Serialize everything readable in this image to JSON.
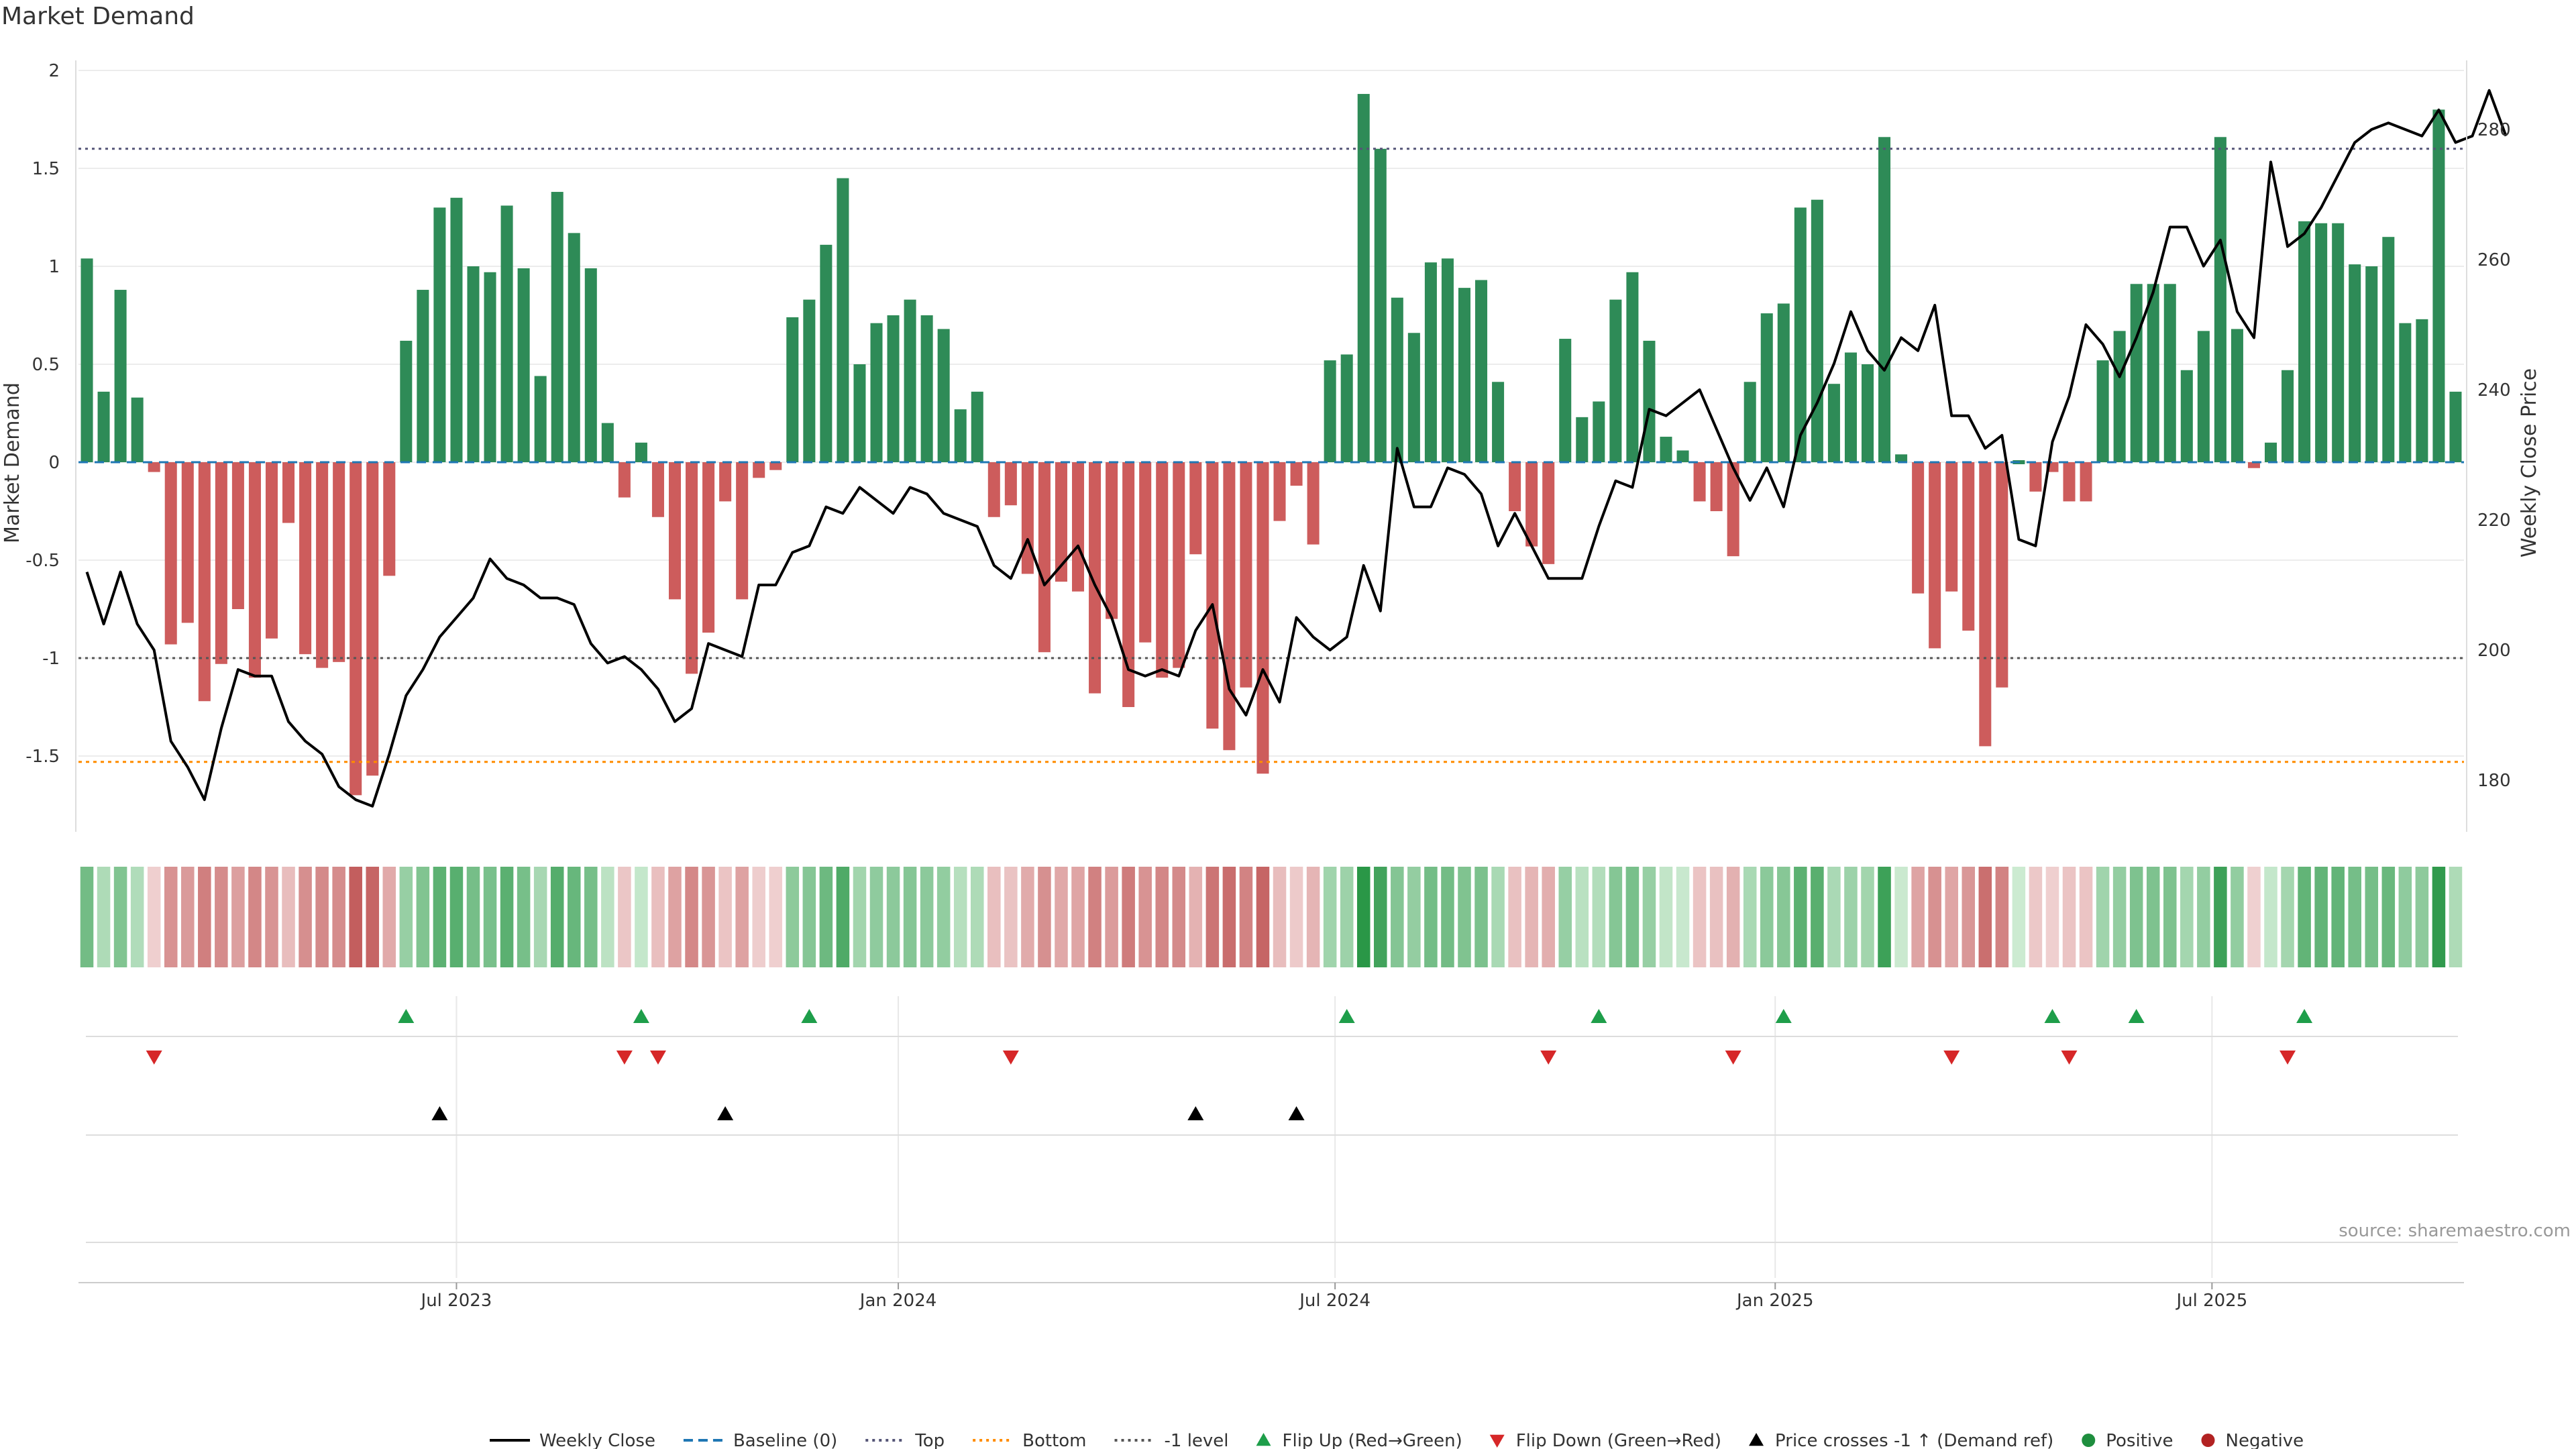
{
  "title": "Market Demand",
  "source": "source: sharemaestro.com",
  "colors": {
    "positive": "#2e8b57",
    "negative": "#cd5c5c",
    "price": "#000000",
    "baseline": "#1f77b4",
    "top": "#555577",
    "bottom": "#ff8c00",
    "minus_one": "#555555",
    "flip_up": "#1e9e4a",
    "flip_down": "#d62728",
    "cross": "#000000",
    "legend_positive": "#1e8e3e",
    "legend_negative": "#b22222"
  },
  "chart_data": {
    "type": "bar",
    "ylabel": "Market Demand",
    "y2label": "Weekly Close Price",
    "ylim": [
      -1.9,
      2.0
    ],
    "y2lim": [
      170,
      286
    ],
    "yticks": [
      "2",
      "1.5",
      "1",
      "0.5",
      "0",
      "-0.5",
      "-1",
      "-1.5"
    ],
    "y2ticks": [
      "280",
      "260",
      "240",
      "220",
      "200",
      "180"
    ],
    "xticks": [
      "Jul 2023",
      "Jan 2024",
      "Jul 2024",
      "Jan 2025",
      "Jul 2025"
    ],
    "xtick_weeks": [
      22.5,
      48.8,
      74.8,
      101,
      127
    ],
    "reference_lines": {
      "top": 1.6,
      "bottom": -1.53,
      "minus_one": -1.0,
      "baseline": 0
    },
    "series": [
      {
        "name": "Market Demand",
        "values": [
          1.04,
          0.36,
          0.88,
          0.33,
          -0.05,
          -0.93,
          -0.82,
          -1.22,
          -1.03,
          -0.75,
          -1.1,
          -0.9,
          -0.31,
          -0.98,
          -1.05,
          -1.02,
          -1.7,
          -1.6,
          -0.58,
          0.62,
          0.88,
          1.3,
          1.35,
          1.0,
          0.97,
          1.31,
          0.99,
          0.44,
          1.38,
          1.17,
          0.99,
          0.2,
          -0.18,
          0.1,
          -0.28,
          -0.7,
          -1.08,
          -0.87,
          -0.2,
          -0.7,
          -0.08,
          -0.04,
          0.74,
          0.83,
          1.11,
          1.45,
          0.5,
          0.71,
          0.75,
          0.83,
          0.75,
          0.68,
          0.27,
          0.36,
          -0.28,
          -0.22,
          -0.57,
          -0.97,
          -0.61,
          -0.66,
          -1.18,
          -0.8,
          -1.25,
          -0.92,
          -1.1,
          -1.05,
          -0.47,
          -1.36,
          -1.47,
          -1.15,
          -1.59,
          -0.3,
          -0.12,
          -0.42,
          0.52,
          0.55,
          1.88,
          1.6,
          0.84,
          0.66,
          1.02,
          1.04,
          0.89,
          0.93,
          0.41,
          -0.25,
          -0.43,
          -0.52,
          0.63,
          0.23,
          0.31,
          0.83,
          0.97,
          0.62,
          0.13,
          0.06,
          -0.2,
          -0.25,
          -0.48,
          0.41,
          0.76,
          0.81,
          1.3,
          1.34,
          0.4,
          0.56,
          0.5,
          1.66,
          0.04,
          -0.67,
          -0.95,
          -0.66,
          -0.86,
          -1.45,
          -1.15,
          0.01,
          -0.15,
          -0.05,
          -0.2,
          -0.2,
          0.52,
          0.67,
          0.91,
          0.91,
          0.91,
          0.47,
          0.67,
          1.66,
          0.68,
          -0.03,
          0.1,
          0.47,
          1.23,
          1.22,
          1.22,
          1.01,
          1.0,
          1.15,
          0.71,
          0.73,
          1.8,
          0.36
        ]
      },
      {
        "name": "Weekly Close",
        "values": [
          212,
          204,
          212,
          204,
          200,
          186,
          182,
          177,
          188,
          197,
          196,
          196,
          189,
          186,
          184,
          179,
          177,
          176,
          184,
          193,
          197,
          202,
          205,
          208,
          214,
          211,
          210,
          208,
          208,
          207,
          201,
          198,
          199,
          197,
          194,
          189,
          191,
          201,
          200,
          199,
          210,
          210,
          215,
          216,
          222,
          221,
          225,
          223,
          221,
          225,
          224,
          221,
          220,
          219,
          213,
          211,
          217,
          210,
          213,
          216,
          210,
          205,
          197,
          196,
          197,
          196,
          203,
          207,
          194,
          190,
          197,
          192,
          205,
          202,
          200,
          202,
          213,
          206,
          231,
          222,
          222,
          228,
          227,
          224,
          216,
          221,
          216,
          211,
          211,
          211,
          219,
          226,
          225,
          237,
          236,
          238,
          240,
          234,
          228,
          223,
          228,
          222,
          233,
          238,
          244,
          252,
          246,
          243,
          248,
          246,
          253,
          236,
          236,
          231,
          233,
          217,
          216,
          232,
          239,
          250,
          247,
          242,
          248,
          255,
          265,
          265,
          259,
          263,
          252,
          248,
          275,
          262,
          264,
          268,
          273,
          278,
          280,
          281,
          280,
          279,
          283,
          278,
          279,
          286,
          279
        ]
      }
    ],
    "flip_up_weeks": [
      19,
      33,
      43,
      75,
      90,
      101,
      117,
      122,
      132
    ],
    "flip_down_weeks": [
      4,
      32,
      34,
      55,
      87,
      98,
      111,
      118,
      131
    ],
    "cross_weeks": [
      21,
      38,
      66,
      72
    ]
  },
  "legend": [
    {
      "label": "Weekly Close",
      "kind": "line-solid",
      "color": "#000000"
    },
    {
      "label": "Baseline (0)",
      "kind": "line-dashed",
      "color": "#1f77b4"
    },
    {
      "label": "Top",
      "kind": "line-dotted",
      "color": "#555577"
    },
    {
      "label": "Bottom",
      "kind": "line-dotted",
      "color": "#ff8c00"
    },
    {
      "label": "-1 level",
      "kind": "line-dotted",
      "color": "#555555"
    },
    {
      "label": "Flip Up (Red→Green)",
      "kind": "tri-up",
      "color": "#1e9e4a"
    },
    {
      "label": "Flip Down (Green→Red)",
      "kind": "tri-down",
      "color": "#d62728"
    },
    {
      "label": "Price crosses -1 ↑ (Demand ref)",
      "kind": "tri-up",
      "color": "#000000"
    },
    {
      "label": "Positive",
      "kind": "dot",
      "color": "#1e8e3e"
    },
    {
      "label": "Negative",
      "kind": "dot",
      "color": "#b22222"
    }
  ]
}
